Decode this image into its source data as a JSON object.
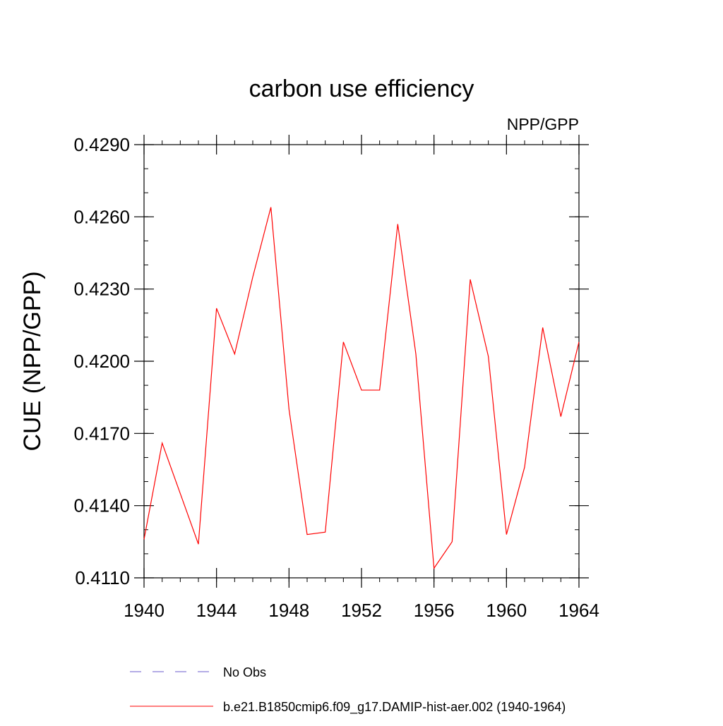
{
  "chart_data": {
    "type": "line",
    "title": "carbon use efficiency",
    "subtitle": "NPP/GPP",
    "xlabel": "",
    "ylabel": "CUE  (NPP/GPP)",
    "xlim": [
      1940,
      1964
    ],
    "ylim": [
      0.411,
      0.429
    ],
    "x_ticks": [
      1940,
      1944,
      1948,
      1952,
      1956,
      1960,
      1964
    ],
    "x_tick_labels": [
      "1940",
      "1944",
      "1948",
      "1952",
      "1956",
      "1960",
      "1964"
    ],
    "y_ticks": [
      0.411,
      0.414,
      0.417,
      0.42,
      0.423,
      0.426,
      0.429
    ],
    "y_tick_labels": [
      "0.4110",
      "0.4140",
      "0.4170",
      "0.4200",
      "0.4230",
      "0.4260",
      "0.4290"
    ],
    "y_minor_step": 0.001,
    "x_minor_step": 1,
    "grid": false,
    "legend_position": "bottom",
    "series": [
      {
        "name": "b.e21.B1850cmip6.f09_g17.DAMIP-hist-aer.002 (1940-1964)",
        "color": "#ff0000",
        "style": "solid",
        "x": [
          1940,
          1941,
          1942,
          1943,
          1944,
          1945,
          1946,
          1947,
          1948,
          1949,
          1950,
          1951,
          1952,
          1953,
          1954,
          1955,
          1956,
          1957,
          1958,
          1959,
          1960,
          1961,
          1962,
          1963,
          1964
        ],
        "y": [
          0.4126,
          0.4166,
          0.4145,
          0.4124,
          0.4222,
          0.4203,
          0.4235,
          0.4264,
          0.418,
          0.4128,
          0.4129,
          0.4208,
          0.4188,
          0.4188,
          0.4257,
          0.4203,
          0.4114,
          0.4125,
          0.4234,
          0.4202,
          0.4128,
          0.4156,
          0.4214,
          0.4177,
          0.4208
        ]
      }
    ],
    "legend": [
      {
        "label": "No Obs",
        "color": "#6a5acd",
        "style": "dashed"
      },
      {
        "label": "b.e21.B1850cmip6.f09_g17.DAMIP-hist-aer.002 (1940-1964)",
        "color": "#ff0000",
        "style": "solid"
      }
    ]
  }
}
